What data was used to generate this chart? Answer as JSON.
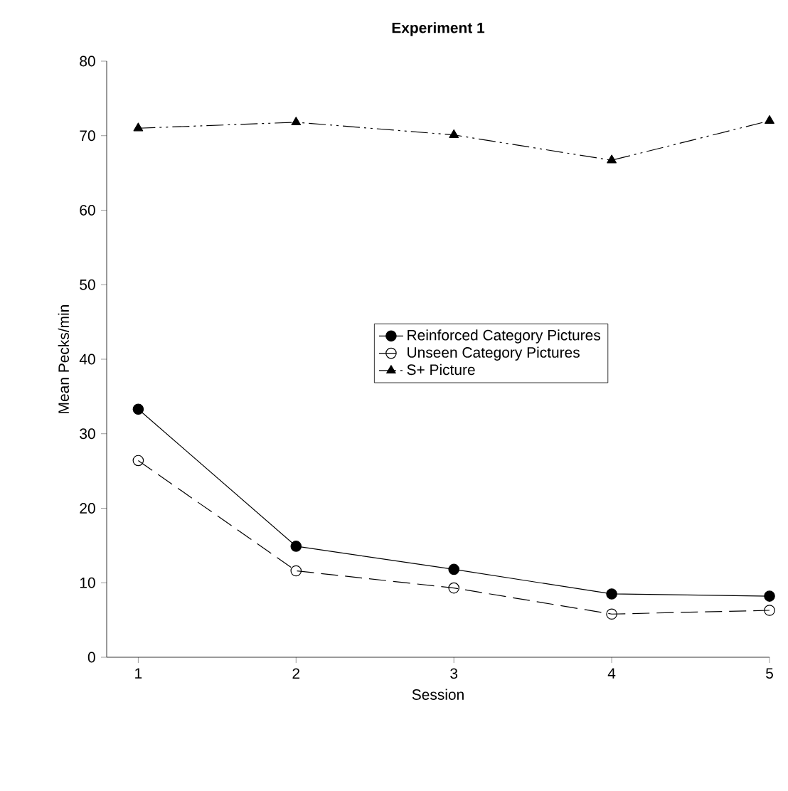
{
  "chart_data": {
    "type": "line",
    "title": "Experiment 1",
    "xlabel": "Session",
    "ylabel": "Mean Pecks/min",
    "x": [
      1,
      2,
      3,
      4,
      5
    ],
    "xlim": [
      0.8,
      5
    ],
    "xticks": [
      1,
      2,
      3,
      4,
      5
    ],
    "ylim": [
      0,
      80
    ],
    "yticks": [
      0,
      10,
      20,
      30,
      40,
      50,
      60,
      70,
      80
    ],
    "grid": false,
    "legend": "center",
    "series": [
      {
        "name": "Reinforced Category Pictures",
        "color": "#000000",
        "marker": "circle",
        "line_style": "solid",
        "values": [
          33.3,
          14.9,
          11.8,
          8.5,
          8.2
        ]
      },
      {
        "name": "Unseen Category Pictures",
        "color": "#000000",
        "marker": "open circle",
        "line_style": "dashed",
        "values": [
          26.4,
          11.6,
          9.3,
          5.8,
          6.3
        ]
      },
      {
        "name": "S+ Picture",
        "color": "#000000",
        "marker": "triangle",
        "line_style": "dashdotdotted",
        "values": [
          71.0,
          71.8,
          70.1,
          66.7,
          72.0
        ]
      }
    ]
  }
}
